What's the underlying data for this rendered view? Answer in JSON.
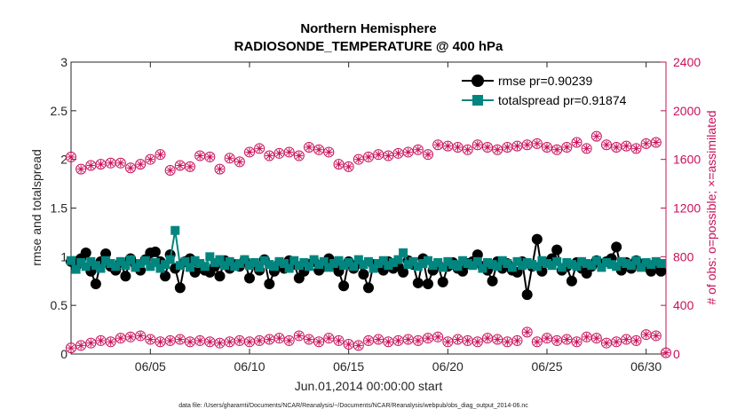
{
  "colors": {
    "rmse": "#000000",
    "spread": "#00857f",
    "obs": "#c8105a",
    "axis": "#262626"
  },
  "chart_data": {
    "type": "line",
    "title_line1": "Northern Hemisphere",
    "title_line2": "RADIOSONDE_TEMPERATURE @ 400 hPa",
    "xlabel": "Jun.01,2014 00:00:00 start",
    "ylabel": "rmse and totalspread",
    "y2label": "# of obs: o=possible; ×=assimilated",
    "footer": "data file: /Users/gharamti/Documents/NCAR/Reanalysis/~/Documents/NCAR/Reanalysis/webpub/obs_diag_output_2014-06.nc",
    "xlim": [
      1,
      31
    ],
    "ylim": [
      0,
      3
    ],
    "y2lim": [
      0,
      2400
    ],
    "xticks": [
      5,
      10,
      15,
      20,
      25,
      30
    ],
    "xtick_labels": [
      "06/05",
      "06/10",
      "06/15",
      "06/20",
      "06/25",
      "06/30"
    ],
    "yticks": [
      0,
      0.5,
      1,
      1.5,
      2,
      2.5,
      3
    ],
    "ytick_labels": [
      "0",
      "0.5",
      "1",
      "1.5",
      "2",
      "2.5",
      "3"
    ],
    "y2ticks": [
      0,
      400,
      800,
      1200,
      1600,
      2000,
      2400
    ],
    "y2tick_labels": [
      "0",
      "400",
      "800",
      "1200",
      "1600",
      "2000",
      "2400"
    ],
    "legend_location": "top-right",
    "series": [
      {
        "name": "rmse pr=0.90239",
        "color": "#000000",
        "marker": "circle",
        "x": [
          1.0,
          1.25,
          1.5,
          1.75,
          2.0,
          2.25,
          2.5,
          2.75,
          3.0,
          3.25,
          3.5,
          3.75,
          4.0,
          4.25,
          4.5,
          4.75,
          5.0,
          5.25,
          5.5,
          5.75,
          6.0,
          6.25,
          6.5,
          6.75,
          7.0,
          7.25,
          7.5,
          7.75,
          8.0,
          8.25,
          8.5,
          8.75,
          9.0,
          9.25,
          9.5,
          9.75,
          10.0,
          10.25,
          10.5,
          10.75,
          11.0,
          11.25,
          11.5,
          11.75,
          12.0,
          12.25,
          12.5,
          12.75,
          13.0,
          13.25,
          13.5,
          13.75,
          14.0,
          14.25,
          14.5,
          14.75,
          15.0,
          15.25,
          15.5,
          15.75,
          16.0,
          16.25,
          16.5,
          16.75,
          17.0,
          17.25,
          17.5,
          17.75,
          18.0,
          18.25,
          18.5,
          18.75,
          19.0,
          19.25,
          19.5,
          19.75,
          20.0,
          20.25,
          20.5,
          20.75,
          21.0,
          21.25,
          21.5,
          21.75,
          22.0,
          22.25,
          22.5,
          22.75,
          23.0,
          23.25,
          23.5,
          23.75,
          24.0,
          24.25,
          24.5,
          24.75,
          25.0,
          25.25,
          25.5,
          25.75,
          26.0,
          26.25,
          26.5,
          26.75,
          27.0,
          27.25,
          27.5,
          27.75,
          28.0,
          28.25,
          28.5,
          28.75,
          29.0,
          29.25,
          29.5,
          29.75,
          30.0,
          30.25,
          30.5,
          30.75
        ],
        "y": [
          0.95,
          0.9,
          0.98,
          1.04,
          0.85,
          0.72,
          0.95,
          1.03,
          0.9,
          0.86,
          0.94,
          0.8,
          0.98,
          0.92,
          0.86,
          0.97,
          1.04,
          1.05,
          0.95,
          0.8,
          1.02,
          0.88,
          0.68,
          0.95,
          0.98,
          0.84,
          0.92,
          0.86,
          0.84,
          0.9,
          0.8,
          0.96,
          0.88,
          0.92,
          0.9,
          0.96,
          0.78,
          0.92,
          0.86,
          0.97,
          0.72,
          0.85,
          0.93,
          0.88,
          0.96,
          0.92,
          0.78,
          0.85,
          0.92,
          0.95,
          0.86,
          0.9,
          0.98,
          0.92,
          0.85,
          0.7,
          0.95,
          0.88,
          0.93,
          0.82,
          0.68,
          0.92,
          0.9,
          0.86,
          0.95,
          0.88,
          0.9,
          0.84,
          0.96,
          0.92,
          0.73,
          0.98,
          0.72,
          0.86,
          0.92,
          0.74,
          0.9,
          0.94,
          0.88,
          0.85,
          0.93,
          0.95,
          1.02,
          0.9,
          0.86,
          0.75,
          0.95,
          0.88,
          0.93,
          0.86,
          0.84,
          0.95,
          0.61,
          0.9,
          1.18,
          0.85,
          0.94,
          0.98,
          1.07,
          0.86,
          0.9,
          0.75,
          0.94,
          0.88,
          0.83,
          0.9,
          0.96,
          0.92,
          0.95,
          0.98,
          1.1,
          0.86,
          0.94,
          0.88,
          0.96,
          0.92,
          0.9,
          0.85,
          0.93,
          0.85
        ],
        "values_note": "approximate, read from plot"
      },
      {
        "name": "totalspread pr=0.91874",
        "color": "#00857f",
        "marker": "square",
        "x": [
          1.0,
          1.25,
          1.5,
          1.75,
          2.0,
          2.25,
          2.5,
          2.75,
          3.0,
          3.25,
          3.5,
          3.75,
          4.0,
          4.25,
          4.5,
          4.75,
          5.0,
          5.25,
          5.5,
          5.75,
          6.0,
          6.25,
          6.5,
          6.75,
          7.0,
          7.25,
          7.5,
          7.75,
          8.0,
          8.25,
          8.5,
          8.75,
          9.0,
          9.25,
          9.5,
          9.75,
          10.0,
          10.25,
          10.5,
          10.75,
          11.0,
          11.25,
          11.5,
          11.75,
          12.0,
          12.25,
          12.5,
          12.75,
          13.0,
          13.25,
          13.5,
          13.75,
          14.0,
          14.25,
          14.5,
          14.75,
          15.0,
          15.25,
          15.5,
          15.75,
          16.0,
          16.25,
          16.5,
          16.75,
          17.0,
          17.25,
          17.5,
          17.75,
          18.0,
          18.25,
          18.5,
          18.75,
          19.0,
          19.25,
          19.5,
          19.75,
          20.0,
          20.25,
          20.5,
          20.75,
          21.0,
          21.25,
          21.5,
          21.75,
          22.0,
          22.25,
          22.5,
          22.75,
          23.0,
          23.25,
          23.5,
          23.75,
          24.0,
          24.25,
          24.5,
          24.75,
          25.0,
          25.25,
          25.5,
          25.75,
          26.0,
          26.25,
          26.5,
          26.75,
          27.0,
          27.25,
          27.5,
          27.75,
          28.0,
          28.25,
          28.5,
          28.75,
          29.0,
          29.25,
          29.5,
          29.75,
          30.0,
          30.25,
          30.5,
          30.75
        ],
        "y": [
          0.96,
          0.87,
          0.94,
          0.9,
          0.95,
          0.91,
          0.88,
          0.96,
          0.93,
          0.9,
          0.95,
          0.91,
          0.97,
          0.89,
          0.93,
          0.96,
          0.9,
          0.94,
          0.88,
          0.92,
          0.97,
          1.27,
          0.91,
          0.95,
          0.89,
          0.96,
          0.93,
          0.9,
          1.0,
          0.94,
          0.97,
          0.91,
          0.95,
          0.9,
          0.93,
          0.97,
          0.91,
          0.94,
          0.89,
          0.96,
          0.92,
          0.9,
          0.95,
          0.93,
          0.88,
          0.96,
          0.91,
          0.94,
          0.9,
          0.97,
          0.92,
          0.95,
          0.89,
          0.93,
          0.96,
          0.91,
          0.94,
          0.9,
          0.97,
          0.92,
          0.95,
          0.88,
          0.93,
          0.96,
          0.91,
          0.94,
          0.97,
          1.04,
          0.92,
          0.95,
          0.9,
          0.93,
          0.96,
          0.91,
          0.94,
          0.89,
          0.95,
          0.92,
          0.9,
          0.96,
          0.93,
          0.91,
          0.95,
          0.88,
          0.94,
          0.92,
          0.9,
          0.96,
          0.93,
          0.89,
          0.95,
          0.91,
          0.94,
          0.92,
          0.9,
          0.96,
          0.93,
          0.91,
          0.95,
          0.89,
          0.94,
          0.92,
          0.9,
          0.95,
          0.93,
          0.91,
          0.96,
          0.89,
          0.94,
          0.92,
          0.9,
          0.95,
          0.93,
          0.91,
          0.96,
          0.89,
          0.94,
          0.92,
          0.95,
          0.93
        ],
        "values_note": "approximate, read from plot"
      },
      {
        "name": "# of obs possible",
        "axis": "right",
        "color": "#c8105a",
        "marker": "circle-open",
        "x": [
          1.0,
          1.5,
          2.0,
          2.5,
          3.0,
          3.5,
          4.0,
          4.5,
          5.0,
          5.5,
          6.0,
          6.5,
          7.0,
          7.5,
          8.0,
          8.5,
          9.0,
          9.5,
          10.0,
          10.5,
          11.0,
          11.5,
          12.0,
          12.5,
          13.0,
          13.5,
          14.0,
          14.5,
          15.0,
          15.5,
          16.0,
          16.5,
          17.0,
          17.5,
          18.0,
          18.5,
          19.0,
          19.5,
          20.0,
          20.5,
          21.0,
          21.5,
          22.0,
          22.5,
          23.0,
          23.5,
          24.0,
          24.5,
          25.0,
          25.5,
          26.0,
          26.5,
          27.0,
          27.5,
          28.0,
          28.5,
          29.0,
          29.5,
          30.0,
          30.5
        ],
        "y": [
          1620,
          1520,
          1550,
          1560,
          1570,
          1570,
          1530,
          1560,
          1600,
          1640,
          1510,
          1550,
          1540,
          1630,
          1620,
          1520,
          1610,
          1580,
          1660,
          1690,
          1630,
          1650,
          1660,
          1630,
          1700,
          1680,
          1660,
          1560,
          1540,
          1600,
          1620,
          1640,
          1630,
          1650,
          1660,
          1680,
          1640,
          1720,
          1710,
          1700,
          1680,
          1720,
          1700,
          1680,
          1700,
          1710,
          1720,
          1730,
          1700,
          1680,
          1700,
          1740,
          1690,
          1790,
          1720,
          1700,
          1710,
          1690,
          1730,
          1740
        ],
        "values_note": "approximate, read from plot"
      },
      {
        "name": "# of obs possible (lower)",
        "axis": "right",
        "color": "#c8105a",
        "marker": "circle-open",
        "x": [
          1.0,
          1.5,
          2.0,
          2.5,
          3.0,
          3.5,
          4.0,
          4.5,
          5.0,
          5.5,
          6.0,
          6.5,
          7.0,
          7.5,
          8.0,
          8.5,
          9.0,
          9.5,
          10.0,
          10.5,
          11.0,
          11.5,
          12.0,
          12.5,
          13.0,
          13.5,
          14.0,
          14.5,
          15.0,
          15.5,
          16.0,
          16.5,
          17.0,
          17.5,
          18.0,
          18.5,
          19.0,
          19.5,
          20.0,
          20.5,
          21.0,
          21.5,
          22.0,
          22.5,
          23.0,
          23.5,
          24.0,
          24.5,
          25.0,
          25.5,
          26.0,
          26.5,
          27.0,
          27.5,
          28.0,
          28.5,
          29.0,
          29.5,
          30.0,
          30.5,
          31.0
        ],
        "y": [
          50,
          70,
          90,
          110,
          100,
          130,
          140,
          150,
          120,
          100,
          110,
          120,
          100,
          110,
          100,
          90,
          100,
          110,
          100,
          110,
          120,
          130,
          110,
          150,
          120,
          100,
          130,
          110,
          80,
          70,
          110,
          120,
          100,
          110,
          120,
          110,
          130,
          140,
          100,
          120,
          110,
          100,
          130,
          120,
          100,
          110,
          180,
          100,
          130,
          110,
          120,
          100,
          140,
          130,
          90,
          100,
          120,
          110,
          160,
          150,
          10
        ],
        "values_note": "approximate, read from plot"
      }
    ]
  }
}
